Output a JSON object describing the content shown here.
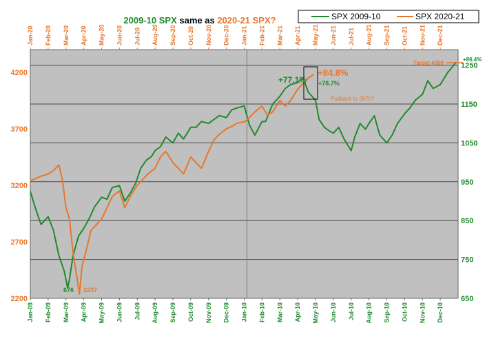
{
  "chart_data": {
    "type": "line",
    "title": {
      "part1": "2009-10 SPX",
      "part2": " same as ",
      "part3": "2020-21 SPX?"
    },
    "grid": true,
    "legend_placement": "top-right",
    "colors": {
      "green": "#1f8a2c",
      "orange": "#e8762b",
      "plot_bg": "#c0c0c0",
      "grid": "#4a4a4a"
    },
    "axes": {
      "left": {
        "series": "SPX 2020-21",
        "range": [
          2200,
          4400
        ],
        "ticks": [
          2200,
          2700,
          3200,
          3700,
          4200
        ]
      },
      "right": {
        "series": "SPX 2009-10",
        "range": [
          650,
          1290
        ],
        "ticks": [
          650,
          750,
          850,
          950,
          1050,
          1150,
          1250
        ]
      },
      "top_ticks": [
        "Jan-20",
        "Feb-20",
        "Mar-20",
        "Apr-20",
        "May-20",
        "Jun-20",
        "Jul-20",
        "Aug-20",
        "Sep-20",
        "Oct-20",
        "Nov-20",
        "Dec-20",
        "Jan-21",
        "Feb-21",
        "Mar-21",
        "Apr-21",
        "May-21",
        "Jun-21",
        "Jul-21",
        "Aug-21",
        "Sep-21",
        "Oct-21",
        "Nov-21",
        "Dec-21"
      ],
      "bottom_ticks": [
        "Jan-09",
        "Feb-09",
        "Mar-09",
        "Apr-09",
        "May-09",
        "Jun-09",
        "Jul-09",
        "Aug-09",
        "Sep-09",
        "Oct-09",
        "Nov-09",
        "Dec-09",
        "Jan-10",
        "Feb-10",
        "Mar-10",
        "Apr-10",
        "May-10",
        "Jun-10",
        "Jul-10",
        "Aug-10",
        "Sep-10",
        "Oct-10",
        "Nov-10",
        "Dec-10"
      ]
    },
    "series": [
      {
        "name": "SPX 2009-10",
        "axis": "right",
        "color": "#1f8a2c",
        "x_unit": "months since Jan-09",
        "x": [
          0,
          0.3,
          0.6,
          1.0,
          1.3,
          1.6,
          1.9,
          2.1,
          2.2,
          2.4,
          2.7,
          3.0,
          3.3,
          3.6,
          4.0,
          4.3,
          4.6,
          5.0,
          5.3,
          5.6,
          5.9,
          6.2,
          6.5,
          6.8,
          7.0,
          7.3,
          7.6,
          8.0,
          8.3,
          8.6,
          9.0,
          9.3,
          9.6,
          10.0,
          10.3,
          10.6,
          11.0,
          11.3,
          11.6,
          12.0,
          12.3,
          12.6,
          13.0,
          13.2,
          13.6,
          14.0,
          14.3,
          14.6,
          15.0,
          15.3,
          15.6,
          16.0,
          16.2,
          16.5,
          16.8,
          17.0,
          17.3,
          17.6,
          18.0,
          18.2,
          18.5,
          18.8,
          19.0,
          19.3,
          19.6,
          20.0,
          20.3,
          20.6,
          21.0,
          21.3,
          21.6,
          22.0,
          22.3,
          22.6,
          23.0,
          23.4,
          23.9
        ],
        "y": [
          925,
          880,
          840,
          860,
          825,
          760,
          720,
          676,
          700,
          760,
          810,
          830,
          855,
          885,
          910,
          905,
          935,
          940,
          900,
          920,
          945,
          985,
          1005,
          1015,
          1030,
          1040,
          1065,
          1050,
          1075,
          1060,
          1090,
          1090,
          1105,
          1100,
          1110,
          1120,
          1115,
          1135,
          1140,
          1145,
          1095,
          1070,
          1105,
          1105,
          1150,
          1170,
          1190,
          1200,
          1205,
          1217,
          1180,
          1160,
          1110,
          1090,
          1080,
          1075,
          1090,
          1060,
          1030,
          1065,
          1100,
          1085,
          1100,
          1120,
          1070,
          1050,
          1070,
          1100,
          1125,
          1140,
          1160,
          1175,
          1210,
          1190,
          1200,
          1230,
          1258
        ]
      },
      {
        "name": "SPX 2020-21",
        "axis": "left",
        "color": "#e8762b",
        "x_unit": "months since Jan-20",
        "x": [
          0,
          0.3,
          0.6,
          1.0,
          1.3,
          1.6,
          1.8,
          2.0,
          2.2,
          2.4,
          2.6,
          2.75,
          2.9,
          3.1,
          3.4,
          3.7,
          4.0,
          4.3,
          4.6,
          5.0,
          5.3,
          5.6,
          6.0,
          6.3,
          6.6,
          7.0,
          7.3,
          7.6,
          8.0,
          8.3,
          8.6,
          9.0,
          9.3,
          9.6,
          10.0,
          10.3,
          10.6,
          11.0,
          11.3,
          11.6,
          12.0,
          12.3,
          12.6,
          13.0,
          13.3,
          13.6,
          14.0,
          14.3,
          14.6,
          15.0,
          15.3,
          15.6,
          15.9
        ],
        "y": [
          3240,
          3260,
          3280,
          3300,
          3330,
          3380,
          3250,
          3000,
          2900,
          2600,
          2400,
          2237,
          2480,
          2600,
          2800,
          2850,
          2900,
          3000,
          3100,
          3150,
          3000,
          3100,
          3200,
          3250,
          3300,
          3350,
          3450,
          3500,
          3400,
          3350,
          3300,
          3450,
          3400,
          3350,
          3500,
          3600,
          3650,
          3700,
          3720,
          3750,
          3760,
          3800,
          3850,
          3900,
          3820,
          3850,
          3950,
          3900,
          3950,
          4050,
          4100,
          4150,
          4180
        ]
      }
    ],
    "annotations": {
      "low_2009": "676",
      "low_2020": "2237",
      "gain_2009": "+77.1%",
      "gain_2020": "+84.8%",
      "gain_2009_b": "+78.7%",
      "pullback": "Pullback to 3870?",
      "target": "Target 4300",
      "gain_end": "+86.4%"
    }
  }
}
